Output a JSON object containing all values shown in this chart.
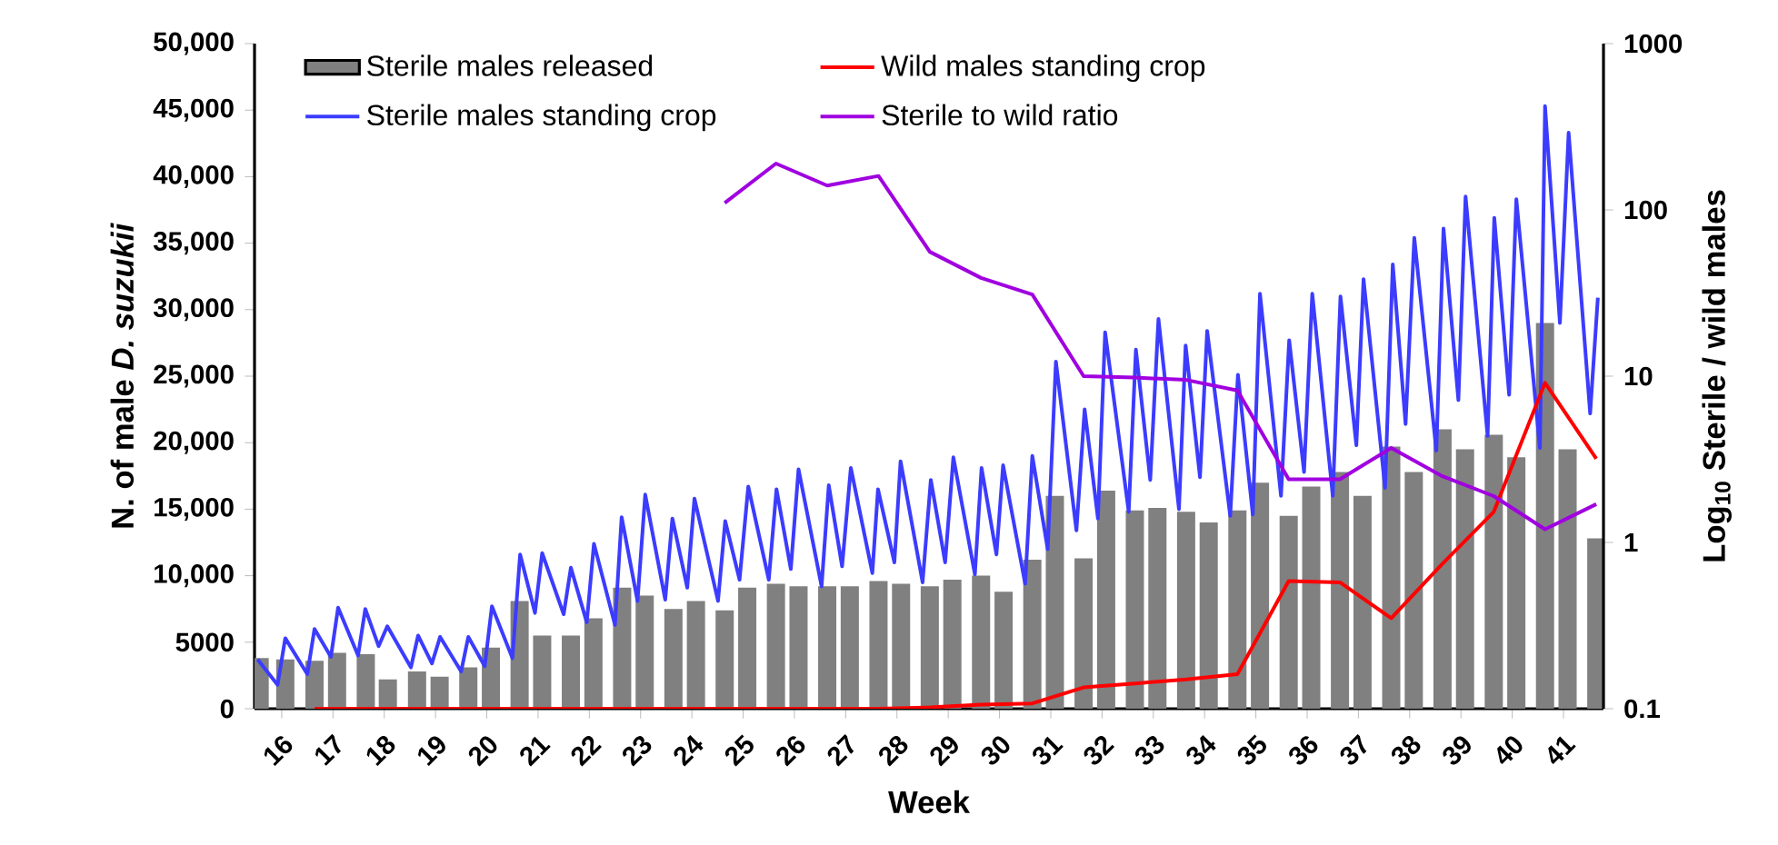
{
  "chart_data": {
    "type": "bar",
    "xlabel": "Week",
    "ylabel": "N. of male *D. suzukii*",
    "y2label": "Log$_{10}$ Sterile / wild males",
    "xlim": [
      15.47,
      41.78
    ],
    "xticks": [
      16,
      17,
      18,
      19,
      20,
      21,
      22,
      23,
      24,
      25,
      26,
      27,
      28,
      29,
      30,
      31,
      32,
      33,
      34,
      35,
      36,
      37,
      38,
      39,
      40,
      41
    ],
    "ylim": [
      0,
      50000
    ],
    "yticks": [
      0,
      5000,
      {
        "value": 10000,
        "label": "10,000"
      },
      {
        "value": 15000,
        "label": "15,000"
      },
      {
        "value": 20000,
        "label": "20,000"
      },
      {
        "value": 25000,
        "label": "25,000"
      },
      {
        "value": 30000,
        "label": "30,000"
      },
      {
        "value": 35000,
        "label": "35,000"
      },
      {
        "value": 40000,
        "label": "40,000"
      },
      {
        "value": 45000,
        "label": "45,000"
      },
      {
        "value": 50000,
        "label": "50,000"
      }
    ],
    "y2lim": [
      0.1,
      1000
    ],
    "y2ticks": [
      0.1,
      1,
      10,
      100,
      1000
    ],
    "log": "y2",
    "legend": "top",
    "series": [
      {
        "name": "Sterile males released",
        "color": "#808080",
        "x": [
          15.57,
          16.07,
          16.64,
          17.08,
          17.64,
          18.07,
          18.64,
          19.08,
          19.64,
          20.08,
          20.64,
          21.08,
          21.64,
          22.08,
          22.64,
          23.08,
          23.64,
          24.08,
          24.64,
          25.08,
          25.64,
          26.08,
          26.64,
          27.08,
          27.64,
          28.08,
          28.64,
          29.08,
          29.64,
          30.08,
          30.64,
          31.08,
          31.64,
          32.08,
          32.64,
          33.08,
          33.64,
          34.08,
          34.64,
          35.08,
          35.64,
          36.08,
          36.64,
          37.08,
          37.64,
          38.08,
          38.64,
          39.08,
          39.64,
          40.08,
          40.64,
          41.08,
          41.64
        ],
        "values": [
          3800,
          3700,
          3600,
          4200,
          4100,
          2200,
          2800,
          2400,
          3100,
          4600,
          8100,
          5500,
          5500,
          6800,
          9100,
          8500,
          7500,
          8100,
          7400,
          9100,
          9400,
          9200,
          9200,
          9200,
          9600,
          9400,
          9200,
          9700,
          10000,
          8800,
          11200,
          16000,
          11300,
          16400,
          14900,
          15100,
          14800,
          14000,
          14900,
          17000,
          14500,
          16700,
          17800,
          16000,
          19700,
          17800,
          21000,
          19500,
          20600,
          18900,
          29000,
          19500,
          12800
        ]
      },
      {
        "name": "Sterile males standing crop",
        "type": "line",
        "color": "#3c3cff",
        "x": [
          15.53,
          15.92,
          16.07,
          16.5,
          16.64,
          16.96,
          17.1,
          17.49,
          17.63,
          17.89,
          18.06,
          18.52,
          18.66,
          18.93,
          19.09,
          19.5,
          19.64,
          19.96,
          20.1,
          20.5,
          20.65,
          20.94,
          21.08,
          21.5,
          21.64,
          21.95,
          22.09,
          22.5,
          22.63,
          22.94,
          23.09,
          23.48,
          23.62,
          23.91,
          24.05,
          24.51,
          24.65,
          24.93,
          25.1,
          25.5,
          25.65,
          25.93,
          26.08,
          26.53,
          26.67,
          26.93,
          27.1,
          27.52,
          27.63,
          27.95,
          28.07,
          28.5,
          28.66,
          28.94,
          29.1,
          29.52,
          29.65,
          29.94,
          30.07,
          30.5,
          30.64,
          30.94,
          31.1,
          31.5,
          31.66,
          31.92,
          32.06,
          32.52,
          32.66,
          32.94,
          33.1,
          33.5,
          33.63,
          33.91,
          34.05,
          34.5,
          34.65,
          34.94,
          35.08,
          35.49,
          35.65,
          35.94,
          36.1,
          36.5,
          36.65,
          36.96,
          37.1,
          37.52,
          37.67,
          37.92,
          38.09,
          38.52,
          38.66,
          38.95,
          39.09,
          39.52,
          39.65,
          39.94,
          40.08,
          40.54,
          40.64,
          40.93,
          41.1,
          41.52,
          41.67
        ],
        "values": [
          3700,
          1800,
          5300,
          2600,
          6000,
          3900,
          7600,
          4000,
          7500,
          4700,
          6200,
          3100,
          5500,
          3400,
          5400,
          2800,
          5400,
          3200,
          7700,
          3800,
          11600,
          7200,
          11700,
          7100,
          10600,
          6500,
          12400,
          6300,
          14400,
          8100,
          16100,
          8200,
          14300,
          9100,
          15800,
          8100,
          14100,
          9700,
          16700,
          9700,
          16500,
          10500,
          18000,
          9200,
          16800,
          10700,
          18100,
          10200,
          16500,
          11000,
          18600,
          9500,
          17200,
          11000,
          18900,
          10100,
          18100,
          11600,
          18300,
          9400,
          19000,
          12000,
          26100,
          13400,
          22500,
          14300,
          28300,
          14800,
          27000,
          17200,
          29300,
          15000,
          27300,
          17400,
          28400,
          14500,
          25100,
          14600,
          31200,
          16000,
          27700,
          17800,
          31200,
          16000,
          31000,
          19800,
          32300,
          16600,
          33400,
          21400,
          35400,
          19400,
          36100,
          23200,
          38500,
          20500,
          36900,
          23600,
          38300,
          19600,
          45300,
          29000,
          43300,
          22200,
          30900
        ]
      },
      {
        "name": "Wild males standing crop",
        "type": "line",
        "color": "#ff0000",
        "x": [
          16.64,
          17.64,
          18.64,
          19.64,
          20.64,
          21.64,
          22.64,
          23.64,
          24.64,
          25.64,
          26.64,
          27.64,
          28.64,
          29.64,
          30.64,
          31.64,
          32.64,
          33.64,
          34.64,
          35.64,
          36.64,
          37.64,
          38.64,
          39.64,
          40.64,
          41.64
        ],
        "values": [
          0,
          0,
          0,
          0,
          0,
          0,
          0,
          0,
          0,
          0,
          0,
          0,
          100,
          300,
          400,
          1600,
          1900,
          2200,
          2600,
          9600,
          9500,
          6800,
          10900,
          14800,
          24500,
          18800
        ]
      },
      {
        "name": "Sterile to wild ratio",
        "type": "line",
        "axis": "y2",
        "color": "#a000e0",
        "x": [
          24.64,
          25.64,
          26.64,
          27.64,
          28.64,
          29.64,
          30.64,
          31.64,
          32.64,
          33.64,
          34.64,
          35.64,
          36.64,
          37.64,
          38.64,
          39.64,
          40.64,
          41.64
        ],
        "values": [
          110,
          190,
          140,
          160,
          56,
          39,
          31,
          10,
          9.8,
          9.5,
          8.2,
          2.4,
          2.4,
          3.7,
          2.5,
          1.9,
          1.2,
          1.7
        ]
      }
    ]
  }
}
